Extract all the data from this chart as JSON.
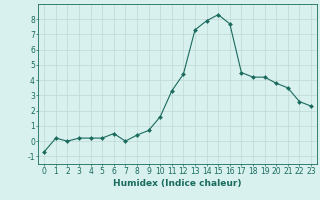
{
  "x": [
    0,
    1,
    2,
    3,
    4,
    5,
    6,
    7,
    8,
    9,
    10,
    11,
    12,
    13,
    14,
    15,
    16,
    17,
    18,
    19,
    20,
    21,
    22,
    23
  ],
  "y": [
    -0.7,
    0.2,
    0.0,
    0.2,
    0.2,
    0.2,
    0.5,
    0.0,
    0.4,
    0.7,
    1.6,
    3.3,
    4.4,
    7.3,
    7.9,
    8.3,
    7.7,
    4.5,
    4.2,
    4.2,
    3.8,
    3.5,
    2.6,
    2.3
  ],
  "line_color": "#1a6b5e",
  "marker": "D",
  "marker_size": 2,
  "bg_color": "#d8f0ee",
  "grid_color": "#c0d8d4",
  "xlabel": "Humidex (Indice chaleur)",
  "xlim": [
    -0.5,
    23.5
  ],
  "ylim": [
    -1.5,
    9.0
  ],
  "yticks": [
    -1,
    0,
    1,
    2,
    3,
    4,
    5,
    6,
    7,
    8
  ],
  "xticks": [
    0,
    1,
    2,
    3,
    4,
    5,
    6,
    7,
    8,
    9,
    10,
    11,
    12,
    13,
    14,
    15,
    16,
    17,
    18,
    19,
    20,
    21,
    22,
    23
  ],
  "tick_color": "#1a6b5e",
  "label_fontsize": 6.5,
  "tick_fontsize": 5.5,
  "spine_color": "#1a6b5e"
}
